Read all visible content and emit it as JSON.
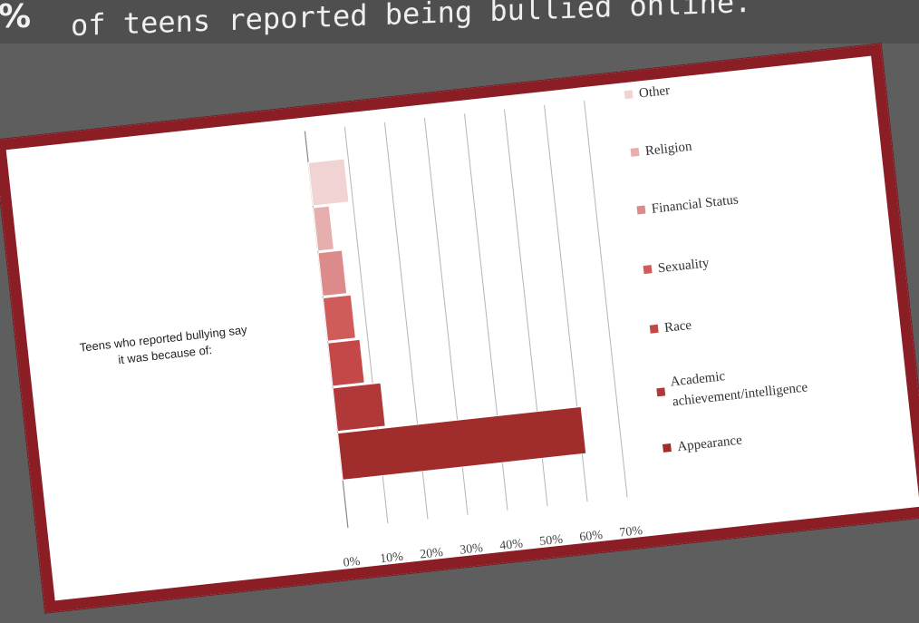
{
  "header": {
    "percent_sign": "%",
    "headline": "of teens reported being bullied online."
  },
  "chart_data": {
    "type": "bar",
    "orientation": "horizontal",
    "title": "",
    "ylabel": "Teens who reported bullying say it was because of:",
    "ylabel_lines": [
      "Teens who reported bullying say",
      "it was because of:"
    ],
    "categories": [
      "Other",
      "Religion",
      "Financial Status",
      "Sexuality",
      "Race",
      "Academic achievement/intelligence",
      "Appearance"
    ],
    "legend_labels": [
      "Other",
      "Religion",
      "Financial Status",
      "Sexuality",
      "Race",
      "Academic\nachievement/intelligence",
      "Appearance"
    ],
    "values": [
      0.09,
      0.04,
      0.06,
      0.07,
      0.08,
      0.12,
      0.61
    ],
    "colors": [
      "#f2d3d3",
      "#e7aeae",
      "#dc8a8a",
      "#cf5b5b",
      "#c44848",
      "#b03838",
      "#a02c2c"
    ],
    "xlim": [
      0,
      0.7
    ],
    "xticks": [
      "0%",
      "10%",
      "20%",
      "30%",
      "40%",
      "50%",
      "60%",
      "70%"
    ],
    "grid": true,
    "legend_position": "right"
  }
}
